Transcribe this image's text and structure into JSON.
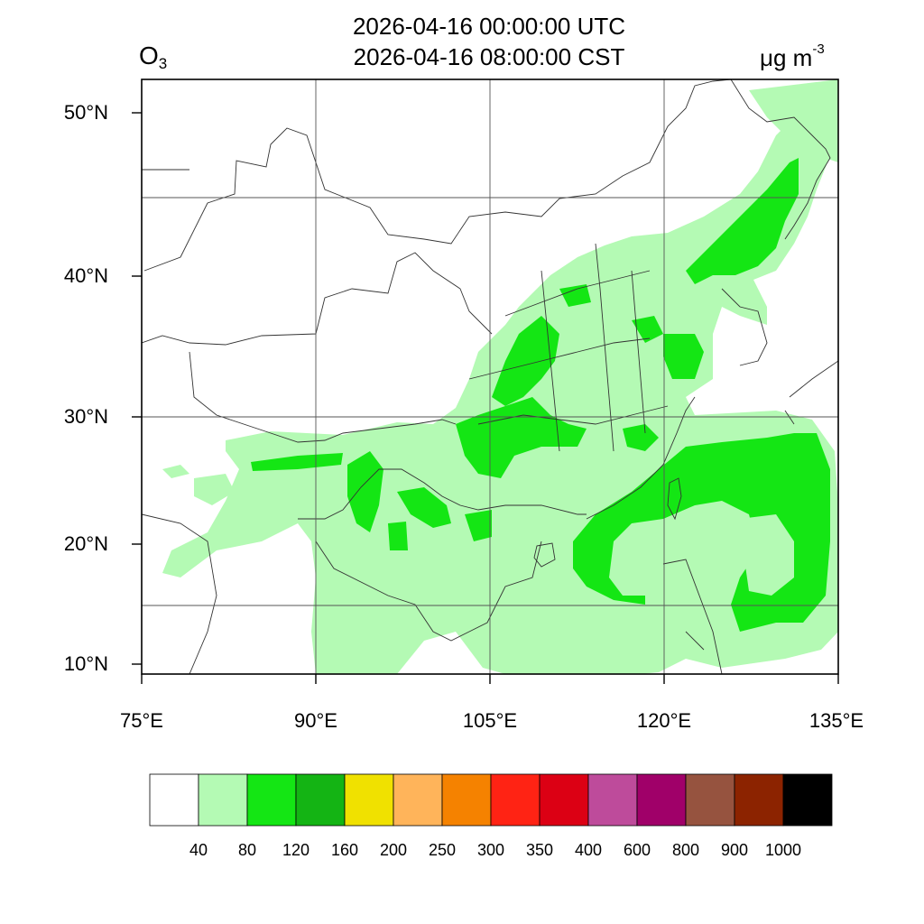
{
  "title": {
    "utc": "2026-04-16 00:00:00 UTC",
    "local": "2026-04-16 08:00:00 CST"
  },
  "species": {
    "base": "O",
    "subscript": "3"
  },
  "units": {
    "base": "μg m",
    "superscript": "-3"
  },
  "map": {
    "lon_range": [
      75,
      135
    ],
    "lat_range": [
      9,
      52
    ],
    "lat_labels": [
      "50°N",
      "40°N",
      "30°N",
      "20°N",
      "10°N"
    ],
    "lon_labels": [
      "75°E",
      "90°E",
      "105°E",
      "120°E",
      "135°E"
    ],
    "background_color": "#ffffff",
    "boundary_color": "#333333"
  },
  "colorbar": {
    "levels": [
      "40",
      "80",
      "120",
      "160",
      "200",
      "250",
      "300",
      "350",
      "400",
      "600",
      "800",
      "900",
      "1000"
    ],
    "colors": [
      "#ffffff",
      "#b4fab4",
      "#14e614",
      "#14b414",
      "#f0e100",
      "#ffb45a",
      "#f58200",
      "#ff2314",
      "#dc0014",
      "#be4b9b",
      "#a00069",
      "#96533f",
      "#8c2300",
      "#000000"
    ]
  },
  "fields": {
    "low_color": "#b4fab4",
    "mid_color": "#14e614"
  }
}
